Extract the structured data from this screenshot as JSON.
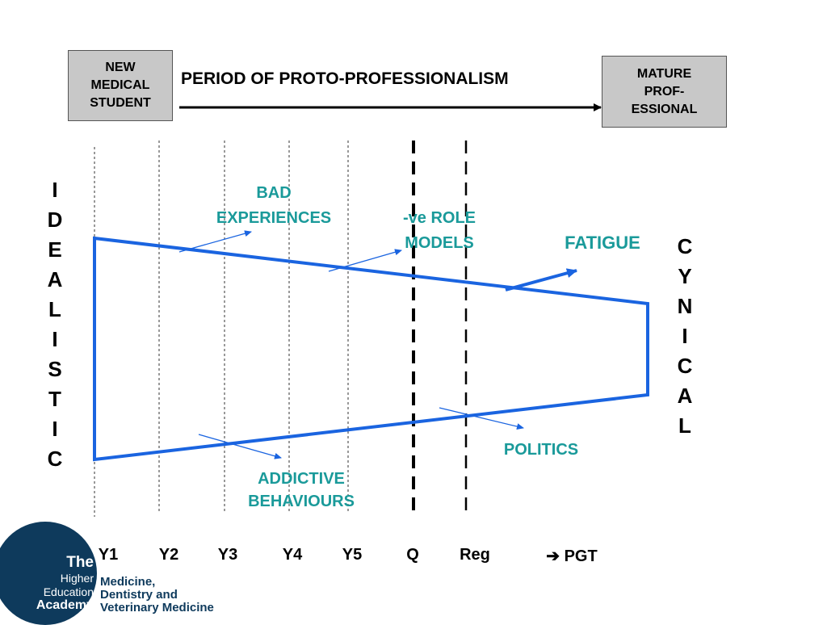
{
  "top": {
    "start_box": "NEW\nMEDICAL\nSTUDENT",
    "period_label": "PERIOD OF PROTO-PROFESSIONALISM",
    "end_box": "MATURE\nPROF-\nESSIONAL"
  },
  "left_word": [
    "I",
    "D",
    "E",
    "A",
    "L",
    "I",
    "S",
    "T",
    "I",
    "C"
  ],
  "right_word": [
    "C",
    "Y",
    "N",
    "I",
    "C",
    "A",
    "L"
  ],
  "labels": {
    "bad_experiences": "BAD\nEXPERIENCES",
    "ve_role_models": "-ve ROLE\nMODELS",
    "fatigue": "FATIGUE",
    "politics": "POLITICS",
    "addictive_behaviours": "ADDICTIVE\nBEHAVIOURS"
  },
  "timeline": [
    "Y1",
    "Y2",
    "Y3",
    "Y4",
    "Y5",
    "Q",
    "Reg",
    "➔  PGT"
  ],
  "logo": {
    "the": "The",
    "higher": "Higher",
    "education": "Education",
    "academy": "Academy",
    "subtitle": "Medicine,\nDentistry and\nVeterinary Medicine"
  },
  "colors": {
    "blue": "#1a64e0",
    "teal": "#1a9a9a",
    "logo_navy": "#0e3a5c"
  }
}
